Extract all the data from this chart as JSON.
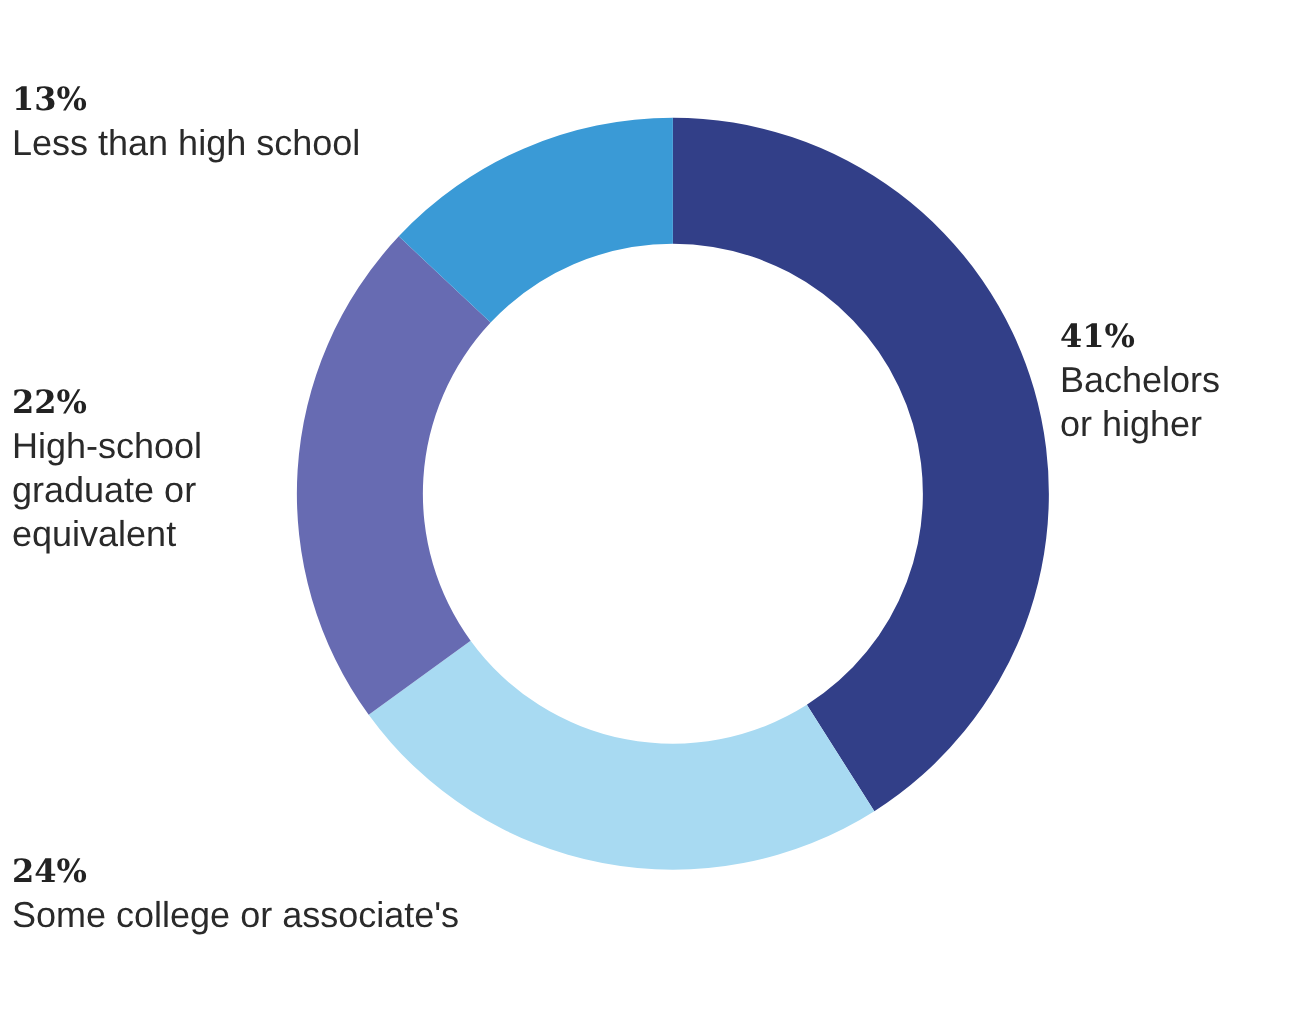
{
  "chart_data": {
    "type": "donut",
    "categories": [
      "Bachelors or higher",
      "Some college or associate's",
      "High-school graduate or equivalent",
      "Less than high school"
    ],
    "values": [
      41,
      24,
      22,
      13
    ],
    "colors": [
      "#323f88",
      "#a8daf2",
      "#676bb2",
      "#3a9ad6"
    ],
    "value_labels": [
      "41%",
      "24%",
      "22%",
      "13%"
    ],
    "legend": false
  }
}
